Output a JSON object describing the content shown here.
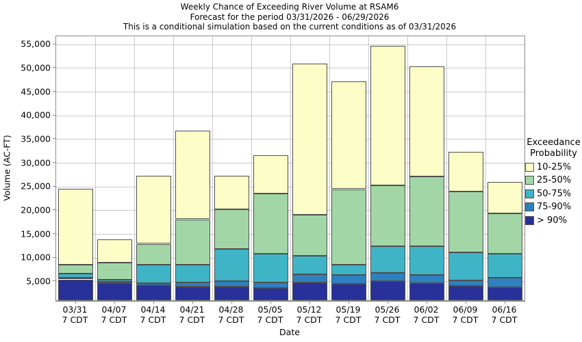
{
  "title": {
    "line1": "Weekly Chance of Exceeding River Volume at RSAM6",
    "line2": "Forecast for the period 03/31/2026 - 06/29/2026",
    "line3": "This is a conditional simulation based on the current conditions as of 03/31/2026"
  },
  "axes": {
    "y_label": "Volume (AC-FT)",
    "x_label": "Date",
    "x_time_suffix": "7 CDT"
  },
  "legend": {
    "title_line1": "Exceedance",
    "title_line2": "Probability",
    "items": [
      {
        "label": "10-25%",
        "color": "#FDFDC8"
      },
      {
        "label": "25-50%",
        "color": "#A2D6A6"
      },
      {
        "label": "50-75%",
        "color": "#3FB4C6"
      },
      {
        "label": "75-90%",
        "color": "#2E80BF"
      },
      {
        "label": "> 90%",
        "color": "#28309A"
      }
    ]
  },
  "chart_data": {
    "type": "bar",
    "stacked": true,
    "title": "Weekly Chance of Exceeding River Volume at RSAM6",
    "xlabel": "Date",
    "ylabel": "Volume (AC-FT)",
    "ylim": [
      1000,
      56700
    ],
    "baseline": 1000,
    "grid": true,
    "legend_position": "right",
    "y_tick_values": [
      5000,
      10000,
      15000,
      20000,
      25000,
      30000,
      35000,
      40000,
      45000,
      50000,
      55000
    ],
    "y_tick_labels": [
      "5,000",
      "10,000",
      "15,000",
      "20,000",
      "25,000",
      "30,000",
      "35,000",
      "40,000",
      "45,000",
      "50,000",
      "55,000"
    ],
    "categories": [
      "03/31",
      "04/07",
      "04/14",
      "04/21",
      "04/28",
      "05/05",
      "05/12",
      "05/19",
      "05/26",
      "06/02",
      "06/09",
      "06/16"
    ],
    "series": [
      {
        "name": "> 90%",
        "color": "#28309A",
        "cumulative_tops": [
          5400,
          4600,
          4200,
          3950,
          3850,
          3650,
          4750,
          4500,
          5000,
          4600,
          4050,
          3750
        ]
      },
      {
        "name": "75-90%",
        "color": "#2E80BF",
        "cumulative_tops": [
          5700,
          4900,
          4650,
          4800,
          5000,
          4700,
          6500,
          6300,
          6800,
          6300,
          5250,
          5700
        ]
      },
      {
        "name": "50-75%",
        "color": "#3FB4C6",
        "cumulative_tops": [
          6600,
          5350,
          8450,
          8550,
          11800,
          10800,
          10400,
          8450,
          12450,
          12400,
          11100,
          10850
        ]
      },
      {
        "name": "25-50%",
        "color": "#A2D6A6",
        "cumulative_tops": [
          8500,
          8950,
          12900,
          18100,
          20150,
          23450,
          19100,
          24450,
          25200,
          27100,
          23950,
          19300
        ]
      },
      {
        "name": "10-25%",
        "color": "#FDFDC8",
        "cumulative_tops": [
          24600,
          13850,
          27200,
          36800,
          27200,
          31600,
          51000,
          47150,
          54700,
          50400,
          32250,
          25900
        ]
      }
    ]
  }
}
